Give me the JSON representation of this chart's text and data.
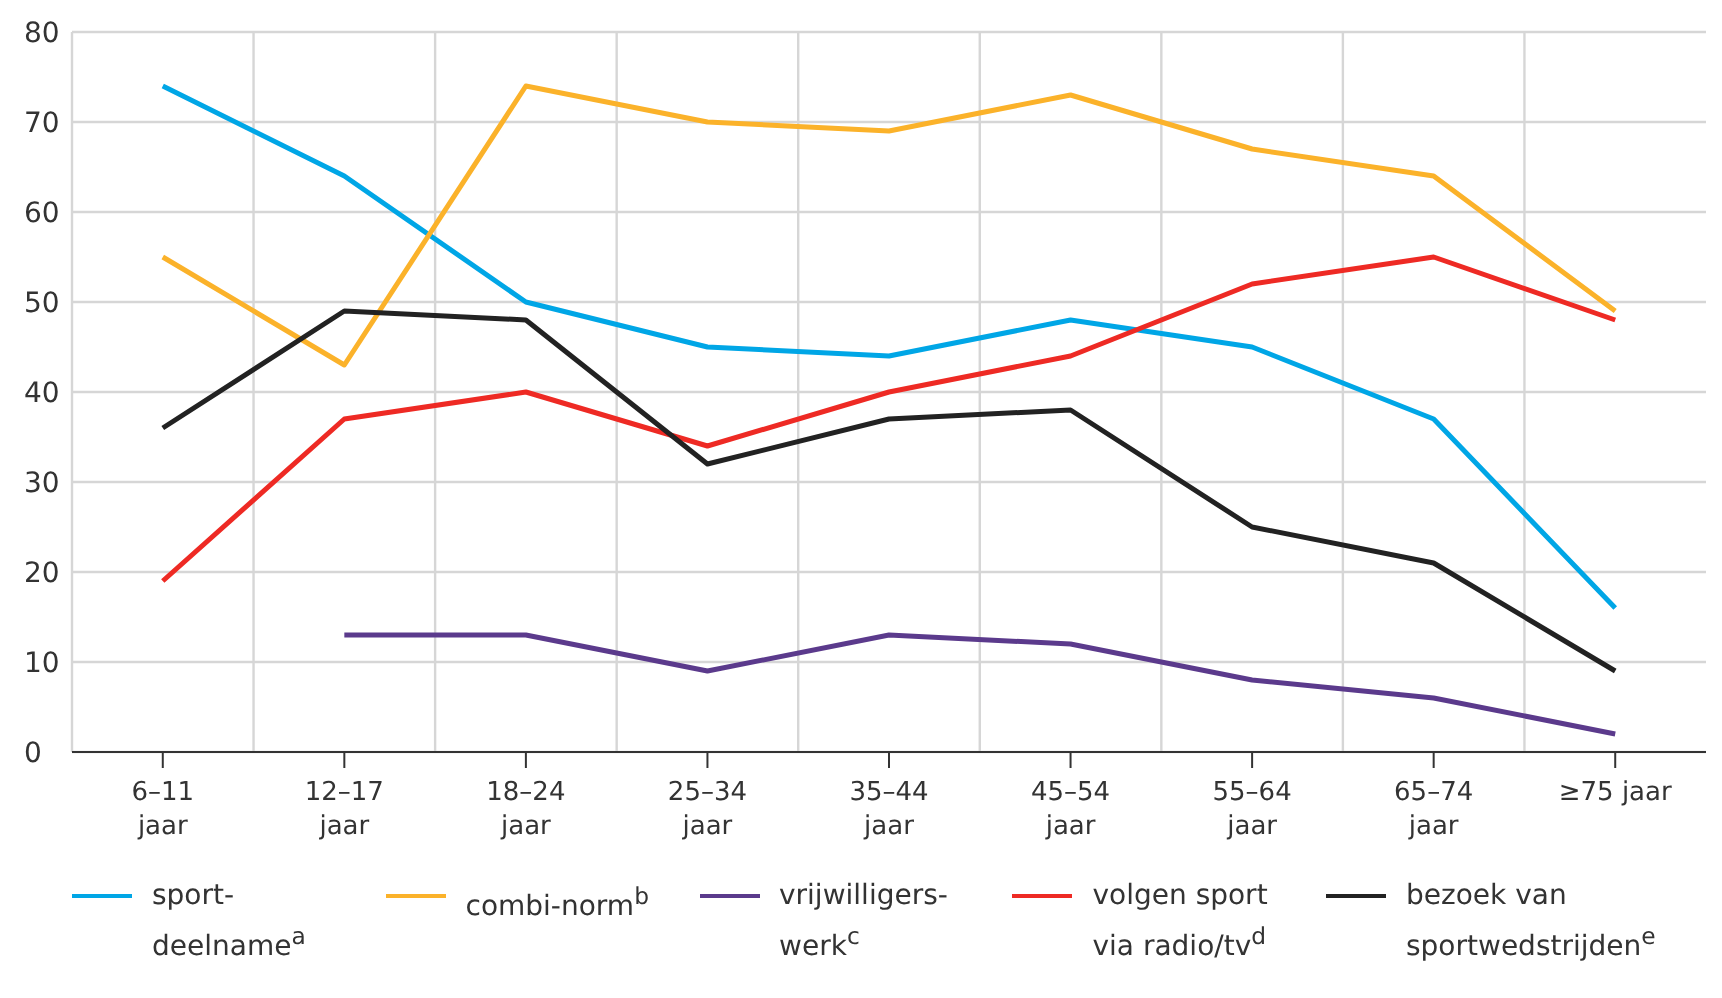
{
  "chart_data": {
    "type": "line",
    "categories": [
      "6–11\njaar",
      "12–17\njaar",
      "18–24\njaar",
      "25–34\njaar",
      "35–44\njaar",
      "45–54\njaar",
      "55–64\njaar",
      "65–74\njaar",
      "≥75 jaar"
    ],
    "series": [
      {
        "name": "sport-deelname$^{a}$",
        "color": "#00a6e6",
        "values": [
          74,
          64,
          50,
          45,
          44,
          48,
          45,
          37,
          16
        ]
      },
      {
        "name": "combi-norm$^{b}$",
        "color": "#fbb22a",
        "values": [
          55,
          43,
          74,
          70,
          69,
          73,
          67,
          64,
          49
        ]
      },
      {
        "name": "vrijwilligers-werk$^{c}$",
        "color": "#5b3a8c",
        "values": [
          null,
          13,
          13,
          9,
          13,
          12,
          8,
          6,
          2
        ]
      },
      {
        "name": "volgen sport via radio/tv$^{d}$",
        "color": "#ee2a24",
        "values": [
          19,
          37,
          40,
          34,
          40,
          44,
          52,
          55,
          48
        ]
      },
      {
        "name": "bezoek van sportwedstrijden$^{e}$",
        "color": "#222222",
        "values": [
          36,
          49,
          48,
          32,
          37,
          38,
          25,
          21,
          9
        ]
      }
    ],
    "ylim": [
      0,
      80
    ],
    "yticks": [
      0,
      10,
      20,
      30,
      40,
      50,
      60,
      70,
      80
    ],
    "grid": true,
    "legend": "bottom",
    "marker": "none",
    "line_style": "solid"
  }
}
